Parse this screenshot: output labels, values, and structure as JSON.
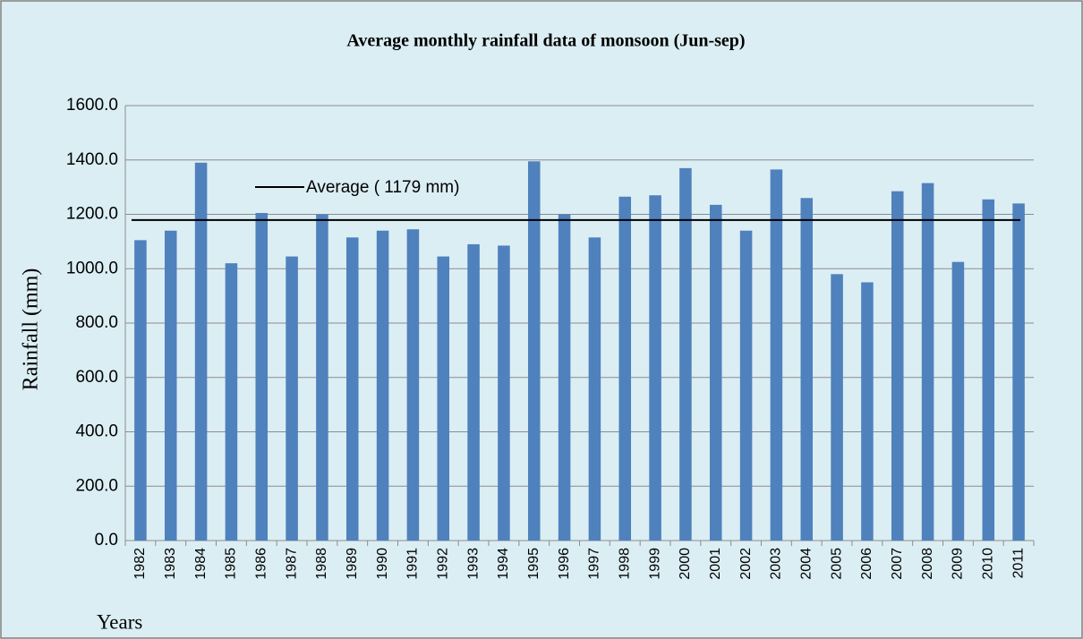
{
  "chart_data": {
    "type": "bar",
    "title": "Average monthly rainfall data of monsoon (Jun-sep)",
    "x_label": "Years",
    "y_label": "Rainfall (mm)",
    "categories": [
      "1982",
      "1983",
      "1984",
      "1985",
      "1986",
      "1987",
      "1988",
      "1989",
      "1990",
      "1991",
      "1992",
      "1993",
      "1994",
      "1995",
      "1996",
      "1997",
      "1998",
      "1999",
      "2000",
      "2001",
      "2002",
      "2003",
      "2004",
      "2005",
      "2006",
      "2007",
      "2008",
      "2009",
      "2010",
      "2011"
    ],
    "values": [
      1105,
      1140,
      1390,
      1020,
      1205,
      1045,
      1200,
      1115,
      1140,
      1145,
      1045,
      1090,
      1085,
      1395,
      1200,
      1115,
      1265,
      1270,
      1370,
      1235,
      1140,
      1365,
      1260,
      980,
      950,
      1285,
      1315,
      1025,
      1255,
      1240
    ],
    "color": "#4f81bd",
    "average": {
      "value": 1179,
      "label": "Average ( 1179 mm)",
      "color": "#000000"
    },
    "ylim": [
      0,
      1600
    ],
    "yticks": [
      {
        "value": 0,
        "label": "0.0"
      },
      {
        "value": 200,
        "label": "200.0"
      },
      {
        "value": 400,
        "label": "400.0"
      },
      {
        "value": 600,
        "label": "600.0"
      },
      {
        "value": 800,
        "label": "800.0"
      },
      {
        "value": 1000,
        "label": "1000.0"
      },
      {
        "value": 1200,
        "label": "1200.0"
      },
      {
        "value": 1400,
        "label": "1400.0"
      },
      {
        "value": 1600,
        "label": "1600.0"
      }
    ],
    "grid": true
  }
}
